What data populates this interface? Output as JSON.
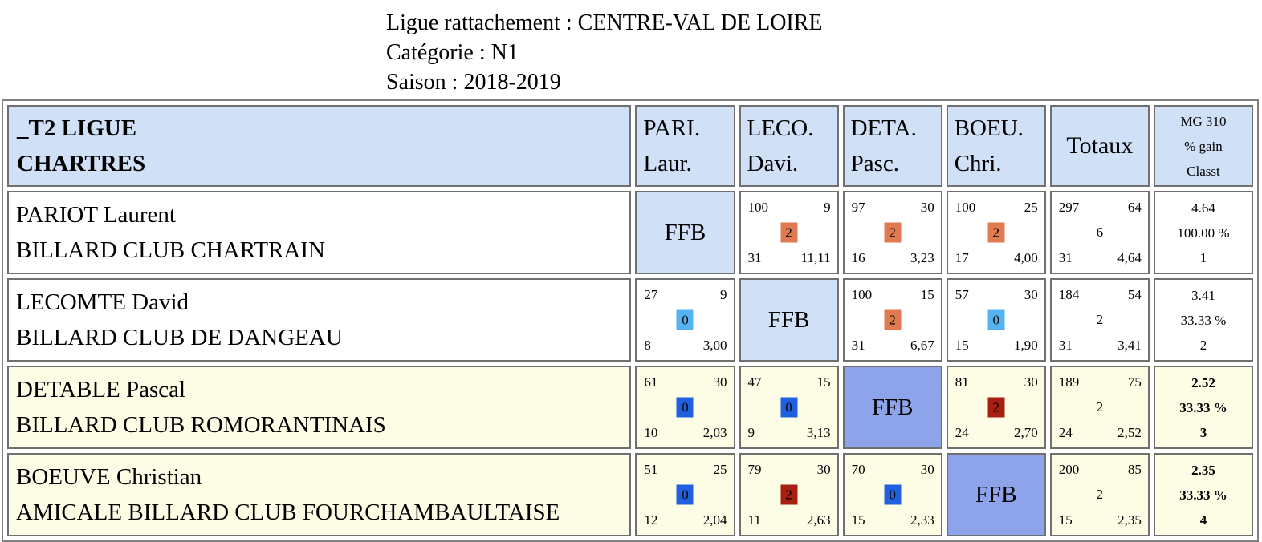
{
  "info": {
    "line1": "Ligue rattachement : CENTRE-VAL DE LOIRE",
    "line2": "Catégorie : N1",
    "line3": "Saison : 2018-2019"
  },
  "header": {
    "team_line1": "_T2 LIGUE",
    "team_line2": "CHARTRES",
    "players": [
      {
        "l1": "PARI.",
        "l2": "Laur."
      },
      {
        "l1": "LECO.",
        "l2": "Davi."
      },
      {
        "l1": "DETA.",
        "l2": "Pasc."
      },
      {
        "l1": "BOEU.",
        "l2": "Chri."
      }
    ],
    "totals": "Totaux",
    "mg_l1": "MG 310",
    "mg_l2": "% gain",
    "mg_l3": "Classt"
  },
  "colors": {
    "header_bg": "#cfe0f7",
    "ffb_light": "#cfe0f7",
    "ffb_dark": "#8da3ea",
    "row_yellow": "#fdfde6",
    "badge_orange": "#e07a50",
    "badge_light_blue": "#55b4f0",
    "badge_blue": "#1f5fe0",
    "badge_red": "#a81e10"
  },
  "ffb_label": "FFB",
  "rows": [
    {
      "name": "PARIOT Laurent",
      "club": "BILLARD CLUB CHARTRAIN",
      "matches": [
        null,
        {
          "tl": "100",
          "tr": "9",
          "mid": "2",
          "bl": "31",
          "br": "11,11"
        },
        {
          "tl": "97",
          "tr": "30",
          "mid": "2",
          "bl": "16",
          "br": "3,23"
        },
        {
          "tl": "100",
          "tr": "25",
          "mid": "2",
          "bl": "17",
          "br": "4,00"
        }
      ],
      "totals": {
        "tl": "297",
        "tr": "64",
        "mid": "6",
        "bl": "31",
        "br": "4,64"
      },
      "mg": {
        "l1": "4.64",
        "l2": "100.00 %",
        "l3": "1"
      }
    },
    {
      "name": "LECOMTE David",
      "club": "BILLARD CLUB DE DANGEAU",
      "matches": [
        {
          "tl": "27",
          "tr": "9",
          "mid": "0",
          "bl": "8",
          "br": "3,00"
        },
        null,
        {
          "tl": "100",
          "tr": "15",
          "mid": "2",
          "bl": "31",
          "br": "6,67"
        },
        {
          "tl": "57",
          "tr": "30",
          "mid": "0",
          "bl": "15",
          "br": "1,90"
        }
      ],
      "totals": {
        "tl": "184",
        "tr": "54",
        "mid": "2",
        "bl": "31",
        "br": "3,41"
      },
      "mg": {
        "l1": "3.41",
        "l2": "33.33 %",
        "l3": "2"
      }
    },
    {
      "name": "DETABLE Pascal",
      "club": "BILLARD CLUB ROMORANTINAIS",
      "matches": [
        {
          "tl": "61",
          "tr": "30",
          "mid": "0",
          "bl": "10",
          "br": "2,03"
        },
        {
          "tl": "47",
          "tr": "15",
          "mid": "0",
          "bl": "9",
          "br": "3,13"
        },
        null,
        {
          "tl": "81",
          "tr": "30",
          "mid": "2",
          "bl": "24",
          "br": "2,70"
        }
      ],
      "totals": {
        "tl": "189",
        "tr": "75",
        "mid": "2",
        "bl": "24",
        "br": "2,52"
      },
      "mg": {
        "l1": "2.52",
        "l2": "33.33 %",
        "l3": "3"
      }
    },
    {
      "name": "BOEUVE Christian",
      "club": "AMICALE BILLARD CLUB FOURCHAMBAULTAISE",
      "matches": [
        {
          "tl": "51",
          "tr": "25",
          "mid": "0",
          "bl": "12",
          "br": "2,04"
        },
        {
          "tl": "79",
          "tr": "30",
          "mid": "2",
          "bl": "11",
          "br": "2,63"
        },
        {
          "tl": "70",
          "tr": "30",
          "mid": "0",
          "bl": "15",
          "br": "2,33"
        },
        null
      ],
      "totals": {
        "tl": "200",
        "tr": "85",
        "mid": "2",
        "bl": "15",
        "br": "2,35"
      },
      "mg": {
        "l1": "2.35",
        "l2": "33.33 %",
        "l3": "4"
      }
    }
  ]
}
